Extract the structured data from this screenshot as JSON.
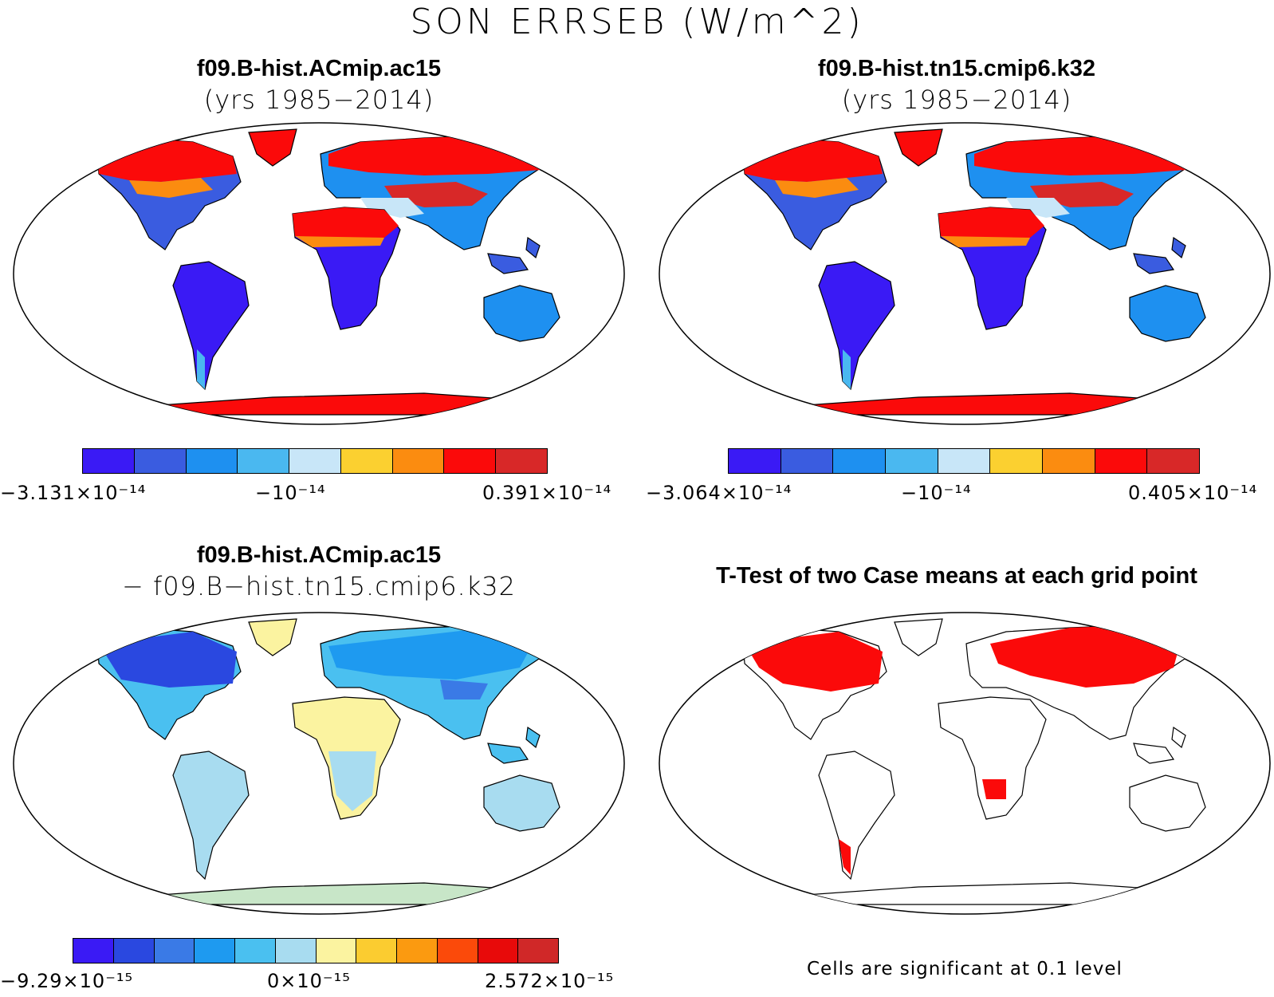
{
  "title": "SON ERRSEB (W/m^2)",
  "panels": [
    {
      "title": "f09.B-hist.ACmip.ac15",
      "subtitle": "(yrs 1985−2014)",
      "colorbar": {
        "colors": [
          "#3a1af5",
          "#3a5ce0",
          "#1e90f0",
          "#4ab8f0",
          "#c8e6f8",
          "#fbd030",
          "#fb8c10",
          "#fb0a0a",
          "#d82828"
        ],
        "labels": {
          "min": "−3.131×10⁻¹⁴",
          "mid": "−10⁻¹⁴",
          "max": "0.391×10⁻¹⁴"
        }
      }
    },
    {
      "title": "f09.B-hist.tn15.cmip6.k32",
      "subtitle": "(yrs 1985−2014)",
      "colorbar": {
        "colors": [
          "#3a1af5",
          "#3a5ce0",
          "#1e90f0",
          "#4ab8f0",
          "#c8e6f8",
          "#fbd030",
          "#fb8c10",
          "#fb0a0a",
          "#d82828"
        ],
        "labels": {
          "min": "−3.064×10⁻¹⁴",
          "mid": "−10⁻¹⁴",
          "max": "0.405×10⁻¹⁴"
        }
      }
    },
    {
      "title": "f09.B-hist.ACmip.ac15",
      "subtitle": "− f09.B−hist.tn15.cmip6.k32",
      "colorbar": {
        "colors": [
          "#3a1af5",
          "#2a48e0",
          "#3a7ae6",
          "#1e9af0",
          "#4ac0f0",
          "#a8dcf0",
          "#fbf3a0",
          "#fbcc30",
          "#fb9a10",
          "#fb4a0a",
          "#e80a0a",
          "#d02828"
        ],
        "labels": {
          "min": "−9.29×10⁻¹⁵",
          "mid": "0×10⁻¹⁵",
          "max": "2.572×10⁻¹⁵"
        }
      }
    },
    {
      "title": "T-Test of two Case means at each grid point",
      "footnote": "Cells are significant at 0.1 level"
    }
  ]
}
